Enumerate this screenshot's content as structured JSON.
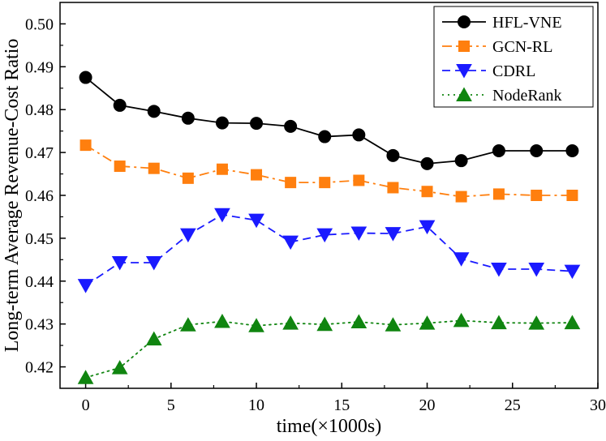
{
  "chart_data": {
    "type": "line",
    "title": "",
    "xlabel": "time(×1000s)",
    "ylabel": "Long-term Average Revenue-Cost Ratio",
    "xlim": [
      -1.5,
      30
    ],
    "ylim": [
      0.415,
      0.505
    ],
    "xticks": [
      0,
      5,
      10,
      15,
      20,
      25,
      30
    ],
    "yticks": [
      0.42,
      0.43,
      0.44,
      0.45,
      0.46,
      0.47,
      0.48,
      0.49,
      0.5
    ],
    "xtick_labels": [
      "0",
      "5",
      "10",
      "15",
      "20",
      "25",
      "30"
    ],
    "ytick_labels": [
      "0.42",
      "0.43",
      "0.44",
      "0.45",
      "0.46",
      "0.47",
      "0.48",
      "0.49",
      "0.50"
    ],
    "grid": false,
    "legend_position": "top-right",
    "x": [
      0,
      2,
      4,
      6,
      8,
      10,
      12,
      14,
      16,
      18,
      20,
      22,
      24.2,
      26.4,
      28.5
    ],
    "series": [
      {
        "name": "HFL-VNE",
        "color": "#000000",
        "line_style": "solid",
        "marker": "circle",
        "values": [
          0.4875,
          0.481,
          0.4796,
          0.478,
          0.4769,
          0.4768,
          0.4761,
          0.4737,
          0.4741,
          0.4693,
          0.4674,
          0.4681,
          0.4704,
          0.4704,
          0.4704
        ]
      },
      {
        "name": "GCN-RL",
        "color": "#ff7f0e",
        "line_style": "dashdot",
        "marker": "square",
        "values": [
          0.4717,
          0.4668,
          0.4663,
          0.464,
          0.4661,
          0.4648,
          0.463,
          0.463,
          0.4635,
          0.4618,
          0.4609,
          0.4597,
          0.4603,
          0.46,
          0.46
        ]
      },
      {
        "name": "CDRL",
        "color": "#1a1aff",
        "line_style": "dashed",
        "marker": "triangle-down",
        "values": [
          0.439,
          0.4443,
          0.4443,
          0.4508,
          0.4555,
          0.4542,
          0.4491,
          0.4508,
          0.4512,
          0.4511,
          0.4527,
          0.4452,
          0.4428,
          0.4428,
          0.4423
        ]
      },
      {
        "name": "NodeRank",
        "color": "#108510",
        "line_style": "dotted",
        "marker": "triangle-up",
        "values": [
          0.4175,
          0.4198,
          0.4265,
          0.4298,
          0.4306,
          0.4296,
          0.4302,
          0.4299,
          0.4305,
          0.4298,
          0.4302,
          0.4308,
          0.4303,
          0.4302,
          0.4303
        ]
      }
    ]
  }
}
